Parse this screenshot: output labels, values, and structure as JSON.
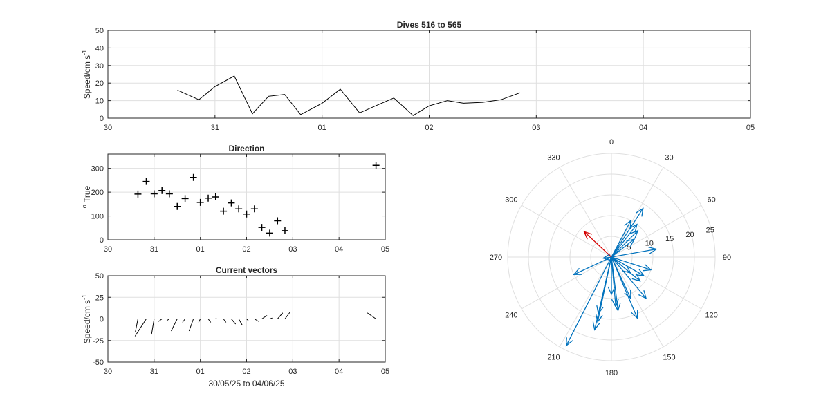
{
  "chart_data": [
    {
      "type": "line",
      "title": "Dives 516 to 565",
      "xlabel": "",
      "ylabel": "Speed/cm s",
      "ylabel_superscript": "-1",
      "xlim": [
        30,
        36
      ],
      "ylim": [
        0,
        50
      ],
      "xtick_labels": [
        "30",
        "31",
        "01",
        "02",
        "03",
        "04",
        "05"
      ],
      "yticks": [
        0,
        10,
        20,
        30,
        40,
        50
      ],
      "grid": true,
      "series": [
        {
          "color": "#000000",
          "x": [
            30.65,
            30.85,
            31.0,
            31.18,
            31.35,
            31.5,
            31.65,
            31.8,
            32.0,
            32.17,
            32.35,
            32.5,
            32.67,
            32.85,
            33.0,
            33.17,
            33.32,
            33.5,
            33.67,
            33.85
          ],
          "y": [
            16,
            10.5,
            18,
            24,
            2.5,
            12.5,
            13.5,
            2,
            8.5,
            16.5,
            3,
            7,
            11.5,
            1.5,
            7,
            10,
            8.5,
            9,
            10.5,
            14.5
          ]
        }
      ]
    },
    {
      "type": "scatter",
      "title": "Direction",
      "xlabel": "",
      "ylabel": "True",
      "ylabel_prefix": "o",
      "xlim": [
        30,
        36
      ],
      "ylim": [
        0,
        360
      ],
      "xtick_labels": [
        "30",
        "31",
        "01",
        "02",
        "03",
        "04",
        "05"
      ],
      "yticks": [
        0,
        100,
        200,
        300
      ],
      "marker": "+",
      "grid": true,
      "series": [
        {
          "color": "#000000",
          "x": [
            30.65,
            30.83,
            31.0,
            31.17,
            31.33,
            31.5,
            31.67,
            31.85,
            32.0,
            32.17,
            32.33,
            32.5,
            32.67,
            32.83,
            33.0,
            33.17,
            33.33,
            33.5,
            33.67,
            33.83,
            35.8
          ],
          "y": [
            192,
            245,
            193,
            207,
            193,
            140,
            173,
            262,
            157,
            175,
            180,
            120,
            155,
            130,
            108,
            130,
            52,
            28,
            80,
            38,
            313
          ]
        }
      ]
    },
    {
      "type": "vector",
      "title": "Current vectors",
      "xlabel": "30/05/25 to 04/06/25",
      "ylabel": "Speed/cm s",
      "ylabel_superscript": "-1",
      "xlim": [
        30,
        36
      ],
      "ylim": [
        -50,
        50
      ],
      "xtick_labels": [
        "30",
        "31",
        "01",
        "02",
        "03",
        "04",
        "05"
      ],
      "yticks": [
        -50,
        -25,
        0,
        25,
        50
      ],
      "grid": true,
      "series": [
        {
          "color": "#000000",
          "x": [
            30.65,
            30.83,
            31.0,
            31.17,
            31.33,
            31.5,
            31.67,
            31.85,
            32.0,
            32.17,
            32.33,
            32.5,
            32.67,
            32.83,
            33.0,
            33.17,
            33.33,
            33.5,
            33.67,
            33.83,
            35.8
          ],
          "u": [
            -3,
            -13,
            -3,
            -4,
            -3,
            -7,
            -3,
            -5,
            -2,
            3,
            1,
            3,
            5,
            4,
            2,
            5,
            6,
            3,
            6,
            6,
            -10
          ],
          "v": [
            -15,
            -20,
            -18,
            -3,
            -2,
            -14,
            -4,
            -14,
            -4,
            -4,
            1,
            -4,
            -6,
            -7,
            -2,
            -3,
            4,
            1,
            7,
            8,
            7
          ]
        }
      ]
    },
    {
      "type": "polar-compass",
      "rlim": [
        0,
        25
      ],
      "rtick_labels": [
        "5",
        "10",
        "15",
        "20",
        "25"
      ],
      "theta_labels": [
        "0",
        "30",
        "60",
        "90",
        "120",
        "150",
        "180",
        "210",
        "240",
        "270",
        "300",
        "330"
      ],
      "grid": true,
      "arrows": [
        {
          "color": "#0072BD",
          "dir": 192,
          "speed": 16
        },
        {
          "color": "#0072BD",
          "dir": 207,
          "speed": 24
        },
        {
          "color": "#0072BD",
          "dir": 193,
          "speed": 18
        },
        {
          "color": "#0072BD",
          "dir": 193,
          "speed": 14
        },
        {
          "color": "#0072BD",
          "dir": 173,
          "speed": 13
        },
        {
          "color": "#0072BD",
          "dir": 157,
          "speed": 16
        },
        {
          "color": "#0072BD",
          "dir": 175,
          "speed": 12
        },
        {
          "color": "#0072BD",
          "dir": 180,
          "speed": 9
        },
        {
          "color": "#0072BD",
          "dir": 155,
          "speed": 11
        },
        {
          "color": "#0072BD",
          "dir": 130,
          "speed": 9
        },
        {
          "color": "#0072BD",
          "dir": 140,
          "speed": 13
        },
        {
          "color": "#0072BD",
          "dir": 120,
          "speed": 9
        },
        {
          "color": "#0072BD",
          "dir": 130,
          "speed": 6
        },
        {
          "color": "#0072BD",
          "dir": 108,
          "speed": 10
        },
        {
          "color": "#0072BD",
          "dir": 80,
          "speed": 11
        },
        {
          "color": "#0072BD",
          "dir": 52,
          "speed": 7
        },
        {
          "color": "#0072BD",
          "dir": 28,
          "speed": 10
        },
        {
          "color": "#0072BD",
          "dir": 38,
          "speed": 10
        },
        {
          "color": "#0072BD",
          "dir": 45,
          "speed": 9
        },
        {
          "color": "#0072BD",
          "dir": 33,
          "speed": 14
        },
        {
          "color": "#0072BD",
          "dir": 245,
          "speed": 10
        },
        {
          "color": "#0072BD",
          "dir": 262,
          "speed": 2
        },
        {
          "color": "#D40000",
          "dir": 313,
          "speed": 9
        }
      ]
    }
  ]
}
